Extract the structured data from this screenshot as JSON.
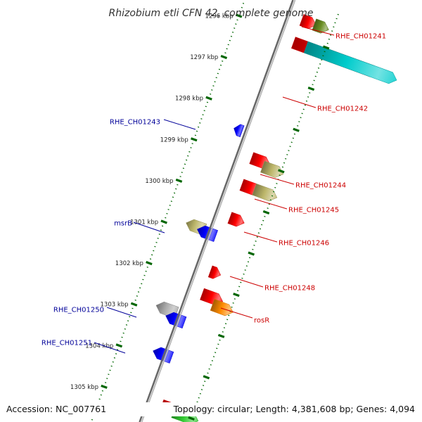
{
  "title": "Rhizobium etli CFN 42, complete genome",
  "footer": {
    "accession": "Accession: NC_007761",
    "summary": "Topology: circular; Length: 4,381,608 bp; Genes: 4,094"
  },
  "colors": {
    "background": "#ffffff",
    "backbone": "#888888",
    "tick": "#006600",
    "forward_label": "#cc0000",
    "reverse_label": "#000099",
    "red": "#ff0000",
    "olive": "#6b8e23",
    "cyan": "#00cccc",
    "khaki": "#bdb76b",
    "blue": "#0000ff",
    "orange": "#ff8c00",
    "gray": "#aaaaaa",
    "green": "#33cc33"
  },
  "ruler": {
    "labels": [
      "1296 kbp",
      "1297 kbp",
      "1298 kbp",
      "1299 kbp",
      "1300 kbp",
      "1301 kbp",
      "1302 kbp",
      "1303 kbp",
      "1304 kbp",
      "1305 kbp"
    ]
  },
  "gene_labels": [
    {
      "name": "RHE_CH01241",
      "strand": "forward"
    },
    {
      "name": "RHE_CH01242",
      "strand": "forward"
    },
    {
      "name": "RHE_CH01243",
      "strand": "reverse"
    },
    {
      "name": "RHE_CH01244",
      "strand": "forward"
    },
    {
      "name": "RHE_CH01245",
      "strand": "forward"
    },
    {
      "name": "msrB",
      "strand": "reverse"
    },
    {
      "name": "RHE_CH01246",
      "strand": "forward"
    },
    {
      "name": "RHE_CH01248",
      "strand": "forward"
    },
    {
      "name": "RHE_CH01250",
      "strand": "reverse"
    },
    {
      "name": "rosR",
      "strand": "forward"
    },
    {
      "name": "RHE_CH01251",
      "strand": "reverse"
    }
  ],
  "features": [
    {
      "track": "forward-outer",
      "color": "red",
      "start_kbp": 1295.6,
      "end_kbp": 1295.95
    },
    {
      "track": "forward-inner",
      "color": "olive",
      "start_kbp": 1295.6,
      "end_kbp": 1295.95
    },
    {
      "track": "forward-outer",
      "color": "red",
      "start_kbp": 1296.15,
      "end_kbp": 1298.2
    },
    {
      "track": "forward-inner",
      "color": "cyan",
      "start_kbp": 1296.15,
      "end_kbp": 1298.35
    },
    {
      "track": "reverse-inner",
      "color": "blue",
      "start_kbp": 1298.45,
      "end_kbp": 1298.65
    },
    {
      "track": "forward-outer",
      "color": "red",
      "start_kbp": 1298.95,
      "end_kbp": 1299.4
    },
    {
      "track": "forward-inner",
      "color": "khaki",
      "start_kbp": 1299.05,
      "end_kbp": 1299.55
    },
    {
      "track": "forward-outer",
      "color": "red",
      "start_kbp": 1299.6,
      "end_kbp": 1300.05
    },
    {
      "track": "forward-inner",
      "color": "khaki",
      "start_kbp": 1299.6,
      "end_kbp": 1300.15
    },
    {
      "track": "forward-outer",
      "color": "red",
      "start_kbp": 1300.4,
      "end_kbp": 1300.75
    },
    {
      "track": "reverse-outer",
      "color": "khaki",
      "start_kbp": 1300.85,
      "end_kbp": 1301.3
    },
    {
      "track": "reverse-inner",
      "color": "blue",
      "start_kbp": 1300.9,
      "end_kbp": 1301.35
    },
    {
      "track": "forward-outer",
      "color": "red",
      "start_kbp": 1301.7,
      "end_kbp": 1301.95
    },
    {
      "track": "forward-outer",
      "color": "red",
      "start_kbp": 1302.25,
      "end_kbp": 1302.75
    },
    {
      "track": "forward-inner",
      "color": "orange",
      "start_kbp": 1302.4,
      "end_kbp": 1302.9
    },
    {
      "track": "reverse-outer",
      "color": "gray",
      "start_kbp": 1302.85,
      "end_kbp": 1303.35
    },
    {
      "track": "reverse-inner",
      "color": "blue",
      "start_kbp": 1303.0,
      "end_kbp": 1303.45
    },
    {
      "track": "reverse-inner",
      "color": "blue",
      "start_kbp": 1303.85,
      "end_kbp": 1304.3
    },
    {
      "track": "forward-outer",
      "color": "red",
      "start_kbp": 1304.95,
      "end_kbp": 1305.6
    },
    {
      "track": "forward-inner",
      "color": "green",
      "start_kbp": 1305.0,
      "end_kbp": 1305.6
    }
  ]
}
